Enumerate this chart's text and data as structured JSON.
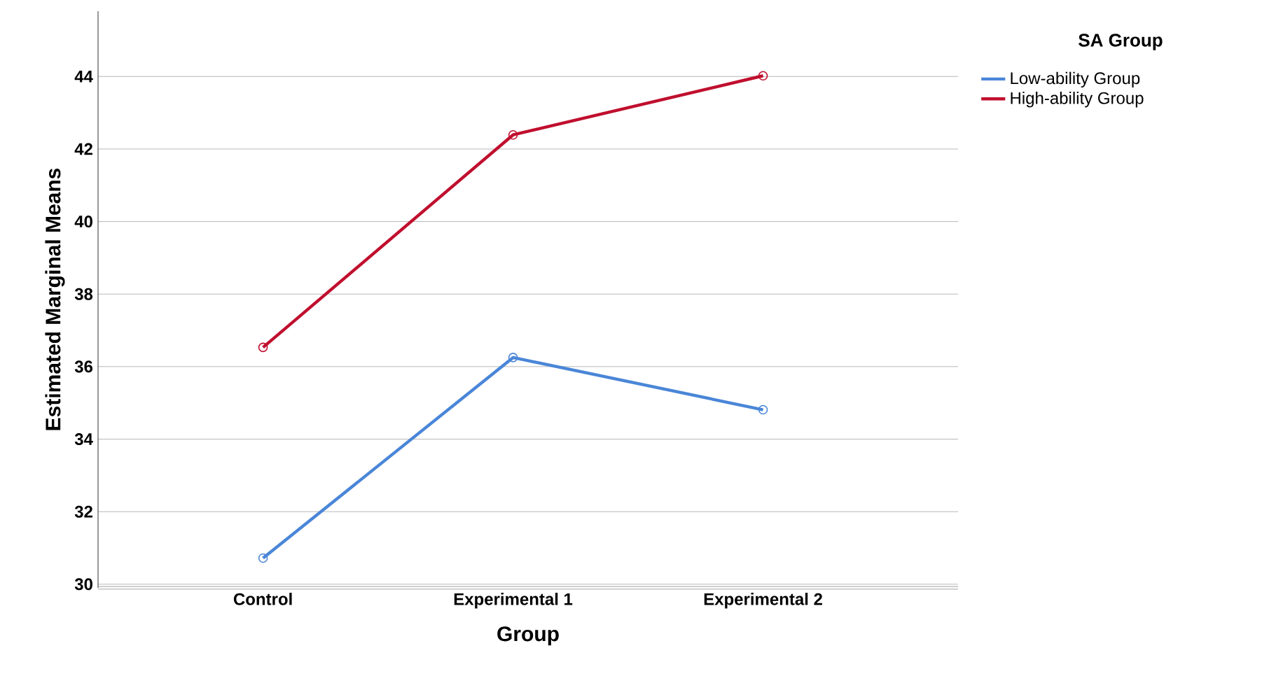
{
  "chart_data": {
    "type": "line",
    "xlabel": "Group",
    "ylabel": "Estimated Marginal Means",
    "legend_title": "SA Group",
    "categories": [
      "Control",
      "Experimental 1",
      "Experimental 2"
    ],
    "series": [
      {
        "name": "Low-ability Group",
        "color": "#4a86d8",
        "values": [
          30.72,
          36.25,
          34.81
        ]
      },
      {
        "name": "High-ability Group",
        "color": "#c00f2e",
        "values": [
          36.53,
          42.39,
          44.02
        ]
      }
    ],
    "ylim": [
      29.9,
      45.8
    ],
    "yticks": [
      30,
      32,
      34,
      36,
      38,
      40,
      42,
      44
    ],
    "grid": "y",
    "legend": "top right",
    "marker": "circle",
    "line_style": "solid"
  }
}
